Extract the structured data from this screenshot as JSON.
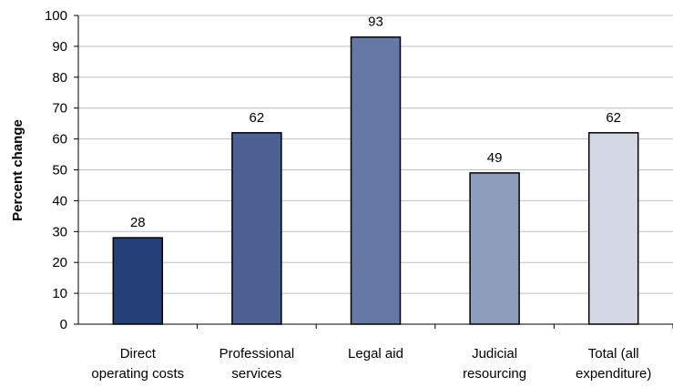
{
  "chart_data": {
    "type": "bar",
    "title": "",
    "xlabel": "",
    "ylabel": "Percent change",
    "ylim": [
      0,
      100
    ],
    "yticks": [
      0,
      10,
      20,
      30,
      40,
      50,
      60,
      70,
      80,
      90,
      100
    ],
    "grid": true,
    "categories": [
      [
        "Direct",
        "operating costs"
      ],
      [
        "Professional",
        "services"
      ],
      [
        "Legal aid"
      ],
      [
        "Judicial",
        "resourcing"
      ],
      [
        "Total (all",
        "expenditure)"
      ]
    ],
    "values": [
      28,
      62,
      93,
      49,
      62
    ],
    "data_labels": [
      "28",
      "62",
      "93",
      "49",
      "62"
    ],
    "bar_colors": [
      "#253f78",
      "#4e6193",
      "#6678a3",
      "#8f9dbd",
      "#d3d8e4"
    ]
  }
}
